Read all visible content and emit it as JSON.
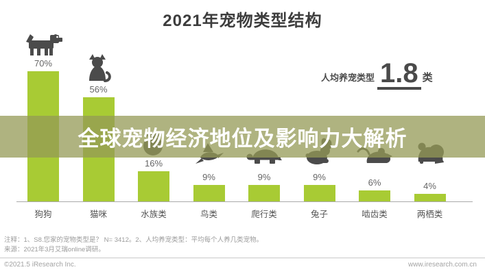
{
  "title": "2021年宠物类型结构",
  "stat": {
    "label": "人均养宠类型",
    "value": "1.8",
    "unit": "类"
  },
  "banner": {
    "text": "全球宠物经济地位及影响力大解析",
    "color": "#949a56"
  },
  "chart_data": {
    "type": "bar",
    "title": "2021年宠物类型结构",
    "categories": [
      "狗狗",
      "猫咪",
      "水族类",
      "鸟类",
      "爬行类",
      "兔子",
      "啮齿类",
      "两栖类"
    ],
    "values": [
      70,
      56,
      16,
      9,
      9,
      9,
      6,
      4
    ],
    "labels": [
      "70%",
      "56%",
      "16%",
      "9%",
      "9%",
      "9%",
      "6%",
      "4%"
    ],
    "icons": [
      "dog-icon",
      "cat-icon",
      "fish-icon",
      "bird-icon",
      "turtle-icon",
      "rabbit-icon",
      "rodent-icon",
      "frog-icon"
    ],
    "unit": "%",
    "bar_color": "#a8cb34",
    "icon_color": "#4b4b4b",
    "ylim": [
      0,
      80
    ],
    "grid": false,
    "legend": false,
    "xlabel": "",
    "ylabel": ""
  },
  "footnotes": [
    "注释：1、S8.您家的宠物类型是？ N= 3412。2、人均养宠类型：平均每个人养几类宠物。",
    "来源：2021年3月艾瑞online调研。"
  ],
  "footer": {
    "left": "©2021.5 iResearch Inc.",
    "right": "www.iresearch.com.cn"
  }
}
